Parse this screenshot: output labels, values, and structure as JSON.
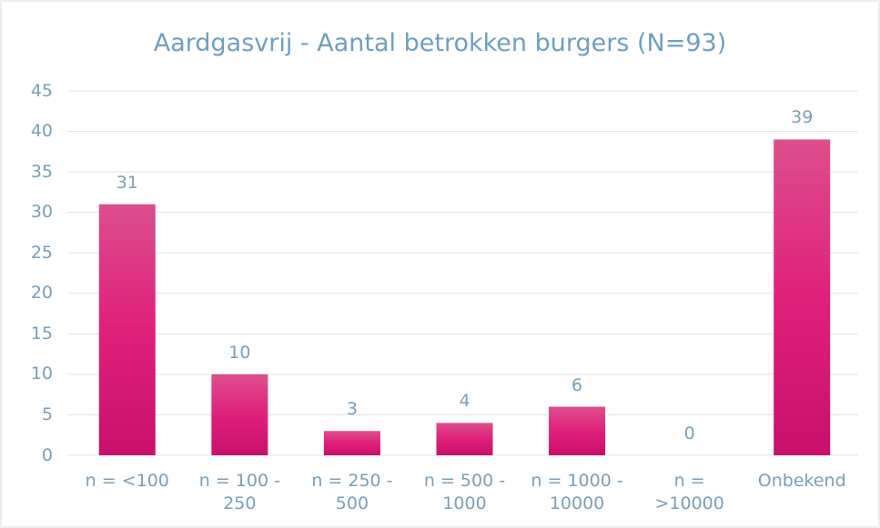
{
  "chart_data": {
    "type": "bar",
    "title": "Aardgasvrij - Aantal betrokken burgers (N=93)",
    "categories": [
      "n = <100",
      "n = 100 - 250",
      "n = 250 - 500",
      "n = 500 - 1000",
      "n = 1000 - 10000",
      "n = >10000",
      "Onbekend"
    ],
    "values": [
      31,
      10,
      3,
      4,
      6,
      0,
      39
    ],
    "color": "#e0207a",
    "ylim": [
      0,
      45
    ],
    "yticks": [
      0,
      5,
      10,
      15,
      20,
      25,
      30,
      35,
      40,
      45
    ],
    "grid": true
  }
}
